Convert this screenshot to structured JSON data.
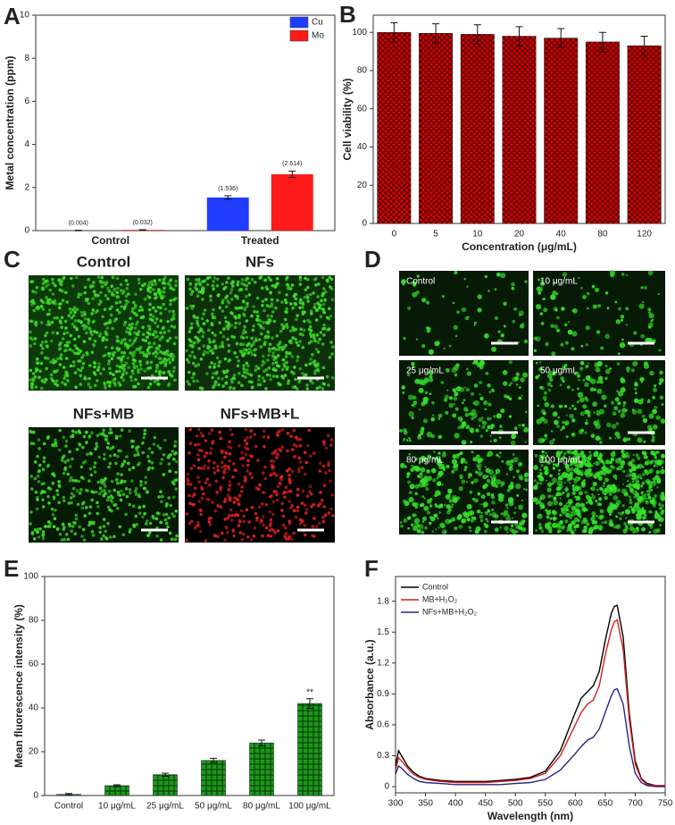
{
  "figure_labels": [
    "A",
    "B",
    "C",
    "D",
    "E",
    "F"
  ],
  "panel_c": {
    "labels": [
      "Control",
      "NFs",
      "NFs+MB",
      "NFs+MB+L"
    ]
  },
  "panel_d": {
    "labels": [
      "Control",
      "10 μg/mL",
      "25 μg/mL",
      "50 μg/mL",
      "80 μg/mL",
      "100 μg/mL"
    ]
  },
  "chart_data": [
    {
      "type": "bar",
      "y_label": "Metal concentration (ppm)",
      "categories": [
        "Control",
        "Treated"
      ],
      "series": [
        {
          "name": "Cu",
          "color": "#1f3cff",
          "values": [
            0.004,
            1.536
          ],
          "errors": [
            0.01,
            0.08
          ],
          "value_labels": [
            "(0.004)",
            "(1.536)"
          ]
        },
        {
          "name": "Mo",
          "color": "#ff1a1a",
          "values": [
            0.032,
            2.614
          ],
          "errors": [
            0.01,
            0.15
          ],
          "value_labels": [
            "(0.032)",
            "(2.614)"
          ]
        }
      ],
      "ylim": [
        0,
        10
      ],
      "yticks": [
        0,
        2,
        4,
        6,
        8,
        10
      ],
      "legend": "top-right"
    },
    {
      "type": "bar",
      "y_label": "Cell viability (%)",
      "x_label": "Concentration (μg/mL)",
      "categories": [
        "0",
        "5",
        "10",
        "20",
        "40",
        "80",
        "120"
      ],
      "values": [
        100,
        99.5,
        99,
        98,
        97,
        95,
        93
      ],
      "errors": [
        5,
        5,
        5,
        5,
        5,
        5,
        5
      ],
      "color": "#e00000",
      "hatch": "cross",
      "ylim": [
        0,
        109
      ],
      "yticks": [
        0,
        20,
        40,
        60,
        80,
        100
      ]
    },
    {
      "type": "bar",
      "y_label": "Mean fluorescence intensity (%)",
      "categories": [
        "Control",
        "10 μg/mL",
        "25 μg/mL",
        "50 μg/mL",
        "80 μg/mL",
        "100 μg/mL"
      ],
      "values": [
        0.5,
        4.5,
        9.5,
        16,
        24,
        42
      ],
      "errors": [
        0.4,
        0.4,
        0.7,
        1,
        1.3,
        2.2
      ],
      "color": "#1a9a1a",
      "hatch": "grid",
      "annotation": "**",
      "ylim": [
        0,
        100
      ],
      "yticks": [
        0,
        20,
        40,
        60,
        80,
        100
      ]
    },
    {
      "type": "line",
      "y_label": "Absorbance (a.u.)",
      "x_label": "Wavelength (nm)",
      "x": [
        300,
        305,
        310,
        320,
        330,
        340,
        350,
        375,
        400,
        425,
        450,
        475,
        500,
        525,
        550,
        575,
        600,
        610,
        620,
        630,
        640,
        650,
        660,
        665,
        670,
        680,
        690,
        700,
        710,
        720,
        735,
        750
      ],
      "series": [
        {
          "name": "Control",
          "color": "#000000",
          "values": [
            0.2,
            0.35,
            0.3,
            0.2,
            0.14,
            0.1,
            0.08,
            0.06,
            0.05,
            0.05,
            0.05,
            0.06,
            0.07,
            0.09,
            0.15,
            0.35,
            0.72,
            0.86,
            0.92,
            0.98,
            1.12,
            1.42,
            1.68,
            1.75,
            1.76,
            1.45,
            0.72,
            0.25,
            0.08,
            0.03,
            0.01,
            0.01
          ]
        },
        {
          "name": "MB+H₂O₂",
          "color": "#d61f1f",
          "values": [
            0.16,
            0.28,
            0.25,
            0.18,
            0.12,
            0.09,
            0.07,
            0.05,
            0.04,
            0.04,
            0.04,
            0.05,
            0.06,
            0.08,
            0.13,
            0.3,
            0.6,
            0.72,
            0.8,
            0.84,
            0.98,
            1.28,
            1.52,
            1.6,
            1.62,
            1.33,
            0.66,
            0.22,
            0.07,
            0.02,
            0.01,
            0.01
          ]
        },
        {
          "name": "NFs+MB+H₂O₂",
          "color": "#262680",
          "values": [
            0.12,
            0.2,
            0.18,
            0.12,
            0.08,
            0.05,
            0.04,
            0.03,
            0.02,
            0.02,
            0.02,
            0.02,
            0.03,
            0.04,
            0.07,
            0.16,
            0.32,
            0.39,
            0.45,
            0.48,
            0.56,
            0.72,
            0.88,
            0.94,
            0.95,
            0.8,
            0.4,
            0.13,
            0.04,
            0.01,
            0,
            0
          ]
        }
      ],
      "xlim": [
        300,
        750
      ],
      "xticks": [
        300,
        350,
        400,
        450,
        500,
        550,
        600,
        650,
        700,
        750
      ],
      "ylim": [
        -0.06,
        2.04
      ],
      "yticks": [
        0,
        0.3,
        0.6,
        0.9,
        1.2,
        1.5,
        1.8
      ],
      "legend": "top-left"
    }
  ]
}
